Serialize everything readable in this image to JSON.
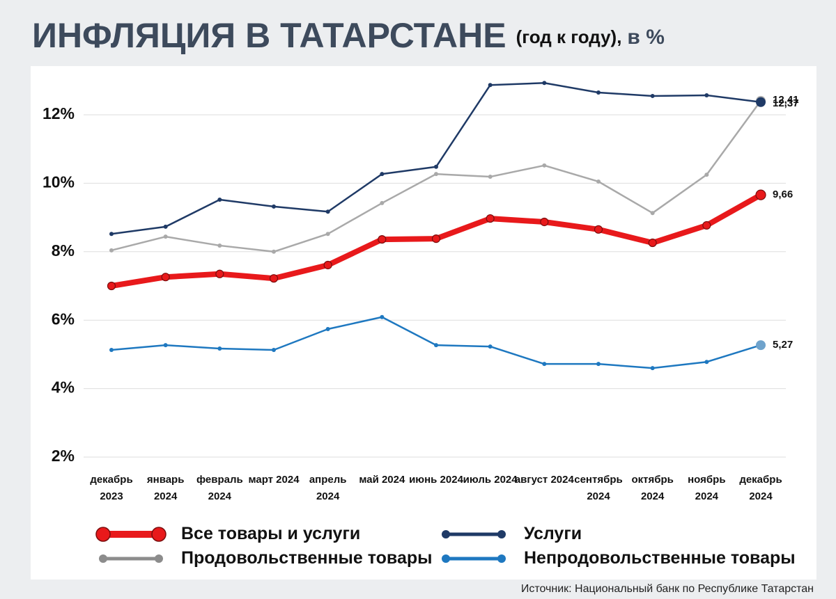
{
  "chart_data": {
    "type": "line",
    "title": "ИНФЛЯЦИЯ В ТАТАРСТАНЕ",
    "title_suffix": "(год к году),",
    "title_unit": "в %",
    "source": "Источник: Национальный банк по Республике Татарстан",
    "categories": [
      "декабрь 2023",
      "январь 2024",
      "февраль 2024",
      "март 2024",
      "апрель 2024",
      "май 2024",
      "июнь 2024",
      "июль 2024",
      "август 2024",
      "сентябрь 2024",
      "октябрь 2024",
      "ноябрь 2024",
      "декабрь 2024"
    ],
    "ylim": [
      2,
      13.5
    ],
    "yticks": [
      {
        "value": 2,
        "label": "2%"
      },
      {
        "value": 4,
        "label": "4%"
      },
      {
        "value": 6,
        "label": "6%"
      },
      {
        "value": 8,
        "label": "8%"
      },
      {
        "value": 10,
        "label": "10%"
      },
      {
        "value": 12,
        "label": "12%"
      }
    ],
    "grid": true,
    "series": [
      {
        "name": "Все товары и услуги",
        "color": "#e8191b",
        "values": [
          7.0,
          7.26,
          7.35,
          7.22,
          7.61,
          8.36,
          8.38,
          8.97,
          8.87,
          8.65,
          8.26,
          8.77,
          9.66
        ],
        "value_labels": [
          null,
          null,
          null,
          null,
          null,
          null,
          null,
          null,
          null,
          null,
          null,
          null,
          "9,66"
        ]
      },
      {
        "name": "Услуги",
        "color": "#1f3a66",
        "values": [
          8.52,
          8.73,
          9.52,
          9.32,
          9.17,
          10.27,
          10.48,
          12.87,
          12.93,
          12.65,
          12.55,
          12.57,
          12.37
        ],
        "value_labels": [
          null,
          null,
          null,
          null,
          null,
          null,
          null,
          null,
          null,
          null,
          null,
          null,
          "12,37"
        ]
      },
      {
        "name": "Продовольственные товары",
        "color": "#a9a9a9",
        "values": [
          8.04,
          8.44,
          8.18,
          8.0,
          8.52,
          9.42,
          10.27,
          10.19,
          10.52,
          10.05,
          9.13,
          10.25,
          12.41
        ],
        "value_labels": [
          null,
          null,
          null,
          null,
          null,
          null,
          null,
          null,
          null,
          null,
          null,
          null,
          "12,41"
        ]
      },
      {
        "name": "Непродовольственные товары",
        "color": "#1e78c0",
        "values": [
          5.13,
          5.27,
          5.17,
          5.13,
          5.74,
          6.09,
          5.27,
          5.23,
          4.72,
          4.72,
          4.6,
          4.78,
          5.27
        ],
        "value_labels": [
          null,
          null,
          null,
          null,
          null,
          null,
          null,
          null,
          null,
          null,
          null,
          null,
          "5,27"
        ]
      }
    ]
  }
}
